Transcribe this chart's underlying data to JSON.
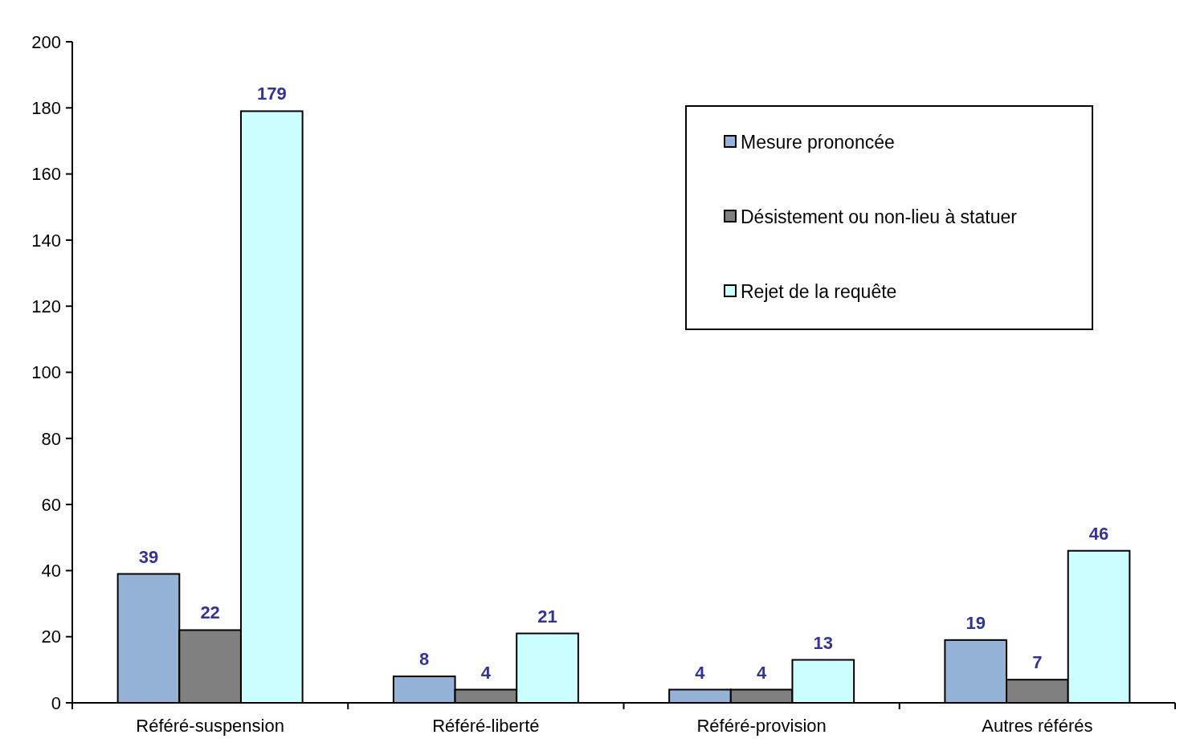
{
  "chart_data": {
    "type": "bar",
    "categories": [
      "Référé-suspension",
      "Référé-liberté",
      "Référé-provision",
      "Autres référés"
    ],
    "series": [
      {
        "name": "Mesure prononcée",
        "color": "#95b3d7",
        "values": [
          39,
          8,
          4,
          19
        ]
      },
      {
        "name": "Désistement ou non-lieu à statuer",
        "color": "#808080",
        "values": [
          22,
          4,
          4,
          7
        ]
      },
      {
        "name": "Rejet de la requête",
        "color": "#ccffff",
        "values": [
          179,
          21,
          13,
          46
        ]
      }
    ],
    "ylim": [
      0,
      200
    ],
    "yticks": [
      0,
      20,
      40,
      60,
      80,
      100,
      120,
      140,
      160,
      180,
      200
    ],
    "data_labels": true,
    "legend": "top right",
    "grid": false
  }
}
